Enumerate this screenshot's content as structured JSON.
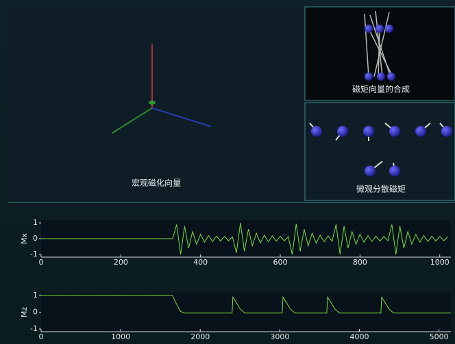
{
  "panels": {
    "macro": {
      "label": "宏观磁化向量"
    },
    "composition": {
      "label": "磁矩向量的合成"
    },
    "micro": {
      "label": "微观分散磁矩"
    }
  },
  "chart_data": [
    {
      "type": "line",
      "ylabel": "Mx",
      "color": "#7ddc3a",
      "x": [
        0,
        330,
        340,
        350,
        360,
        370,
        380,
        390,
        400,
        410,
        420,
        430,
        440,
        450,
        460,
        470,
        480,
        490,
        500,
        510,
        520,
        530,
        540,
        550,
        560,
        570,
        580,
        590,
        600,
        610,
        620,
        630,
        640,
        650,
        660,
        670,
        680,
        690,
        700,
        710,
        720,
        730,
        740,
        750,
        760,
        770,
        780,
        790,
        800,
        810,
        820,
        830,
        840,
        850,
        860,
        870,
        880,
        890,
        900,
        910,
        920,
        930,
        940,
        950,
        960,
        970,
        980,
        990,
        1000,
        1010,
        1020
      ],
      "values": [
        0,
        0,
        0.9,
        -1,
        0.8,
        -0.6,
        0.45,
        -0.35,
        0.28,
        -0.22,
        0.2,
        -0.18,
        0.16,
        -0.15,
        0.14,
        -0.13,
        0.12,
        -0.9,
        1,
        -0.8,
        0.6,
        -0.45,
        0.35,
        -0.28,
        0.22,
        -0.2,
        0.18,
        -0.16,
        0.15,
        -0.14,
        0.13,
        -1,
        0.95,
        -0.8,
        0.6,
        -0.45,
        0.35,
        -0.28,
        0.22,
        -0.2,
        0.18,
        -0.16,
        0.9,
        -1,
        0.8,
        -0.6,
        0.45,
        -0.35,
        0.28,
        -0.22,
        0.2,
        -0.18,
        0.16,
        -0.15,
        0.14,
        -0.13,
        0.9,
        -1,
        0.8,
        -0.6,
        0.45,
        -0.35,
        0.28,
        -0.22,
        0.2,
        -0.18,
        0.16,
        -0.15,
        0.14,
        -0.13,
        0.12
      ],
      "xlim": [
        0,
        1028
      ],
      "ylim": [
        -1,
        1
      ],
      "xticks": [
        0,
        200,
        400,
        600,
        800,
        1000
      ],
      "yticks": [
        -1,
        0,
        1
      ]
    },
    {
      "type": "line",
      "ylabel": "Mz",
      "color": "#7ddc3a",
      "x": [
        0,
        1650,
        1700,
        1750,
        1800,
        2400,
        2410,
        2450,
        2500,
        2560,
        3030,
        3040,
        3080,
        3130,
        3190,
        3590,
        3600,
        3640,
        3690,
        3750,
        4270,
        4280,
        4320,
        4370,
        4430,
        5150
      ],
      "values": [
        1,
        1,
        0.5,
        0.05,
        -0.05,
        -0.05,
        0.9,
        0.6,
        0.2,
        -0.05,
        -0.05,
        0.9,
        0.6,
        0.2,
        -0.05,
        -0.05,
        0.9,
        0.6,
        0.2,
        -0.05,
        -0.05,
        0.9,
        0.6,
        0.2,
        -0.05,
        -0.05
      ],
      "xlim": [
        0,
        5150
      ],
      "ylim": [
        -1,
        1
      ],
      "xticks": [
        0,
        1000,
        2000,
        3000,
        4000,
        5000
      ],
      "yticks": [
        -1,
        0,
        1
      ]
    }
  ]
}
